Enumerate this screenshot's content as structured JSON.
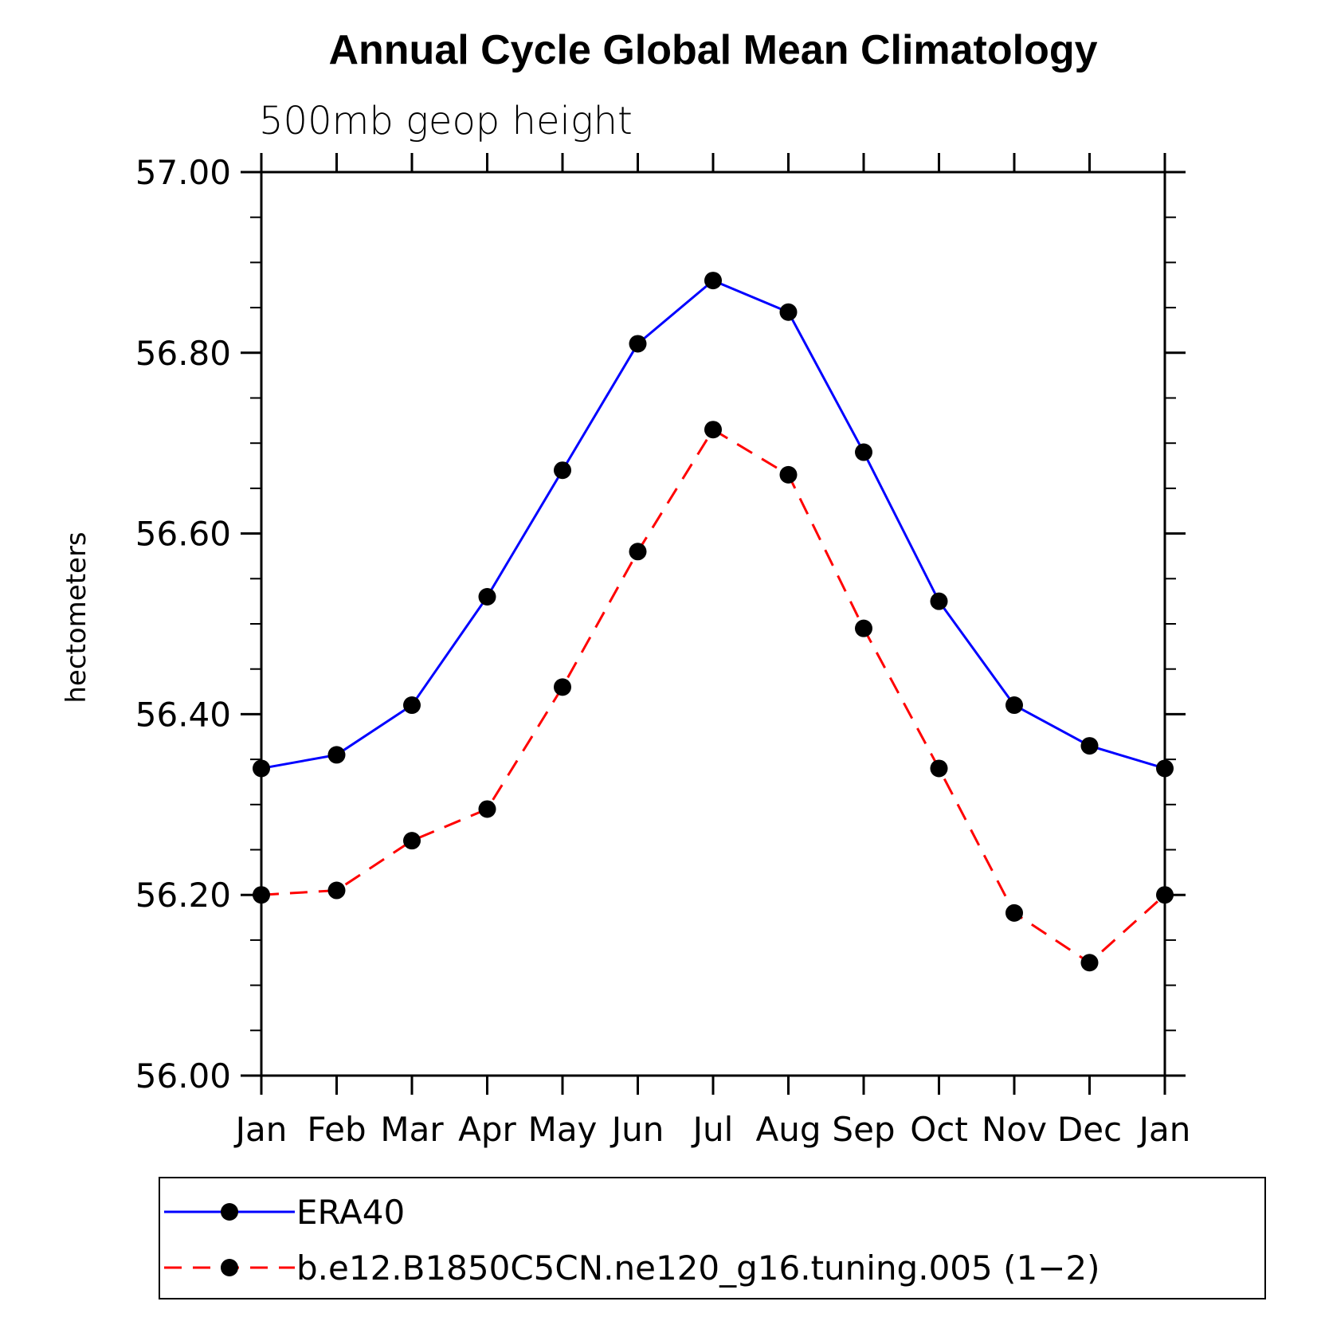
{
  "chart_data": {
    "type": "line",
    "title": "Annual Cycle Global Mean Climatology",
    "subtitle": "500mb geop height",
    "ylabel": "hectometers",
    "xlabel": "",
    "categories": [
      "Jan",
      "Feb",
      "Mar",
      "Apr",
      "May",
      "Jun",
      "Jul",
      "Aug",
      "Sep",
      "Oct",
      "Nov",
      "Dec",
      "Jan"
    ],
    "ylim": [
      56.0,
      57.0
    ],
    "yticks": [
      "56.00",
      "56.20",
      "56.40",
      "56.60",
      "56.80",
      "57.00"
    ],
    "grid": false,
    "legend_position": "bottom",
    "series": [
      {
        "name": "ERA40",
        "color": "#0000ff",
        "line_style": "solid",
        "marker": "filled-circle",
        "values": [
          56.34,
          56.355,
          56.41,
          56.53,
          56.67,
          56.81,
          56.88,
          56.845,
          56.69,
          56.525,
          56.41,
          56.365,
          56.34
        ]
      },
      {
        "name": "b.e12.B1850C5CN.ne120_g16.tuning.005 (1−2)",
        "color": "#ff0000",
        "line_style": "dashed",
        "marker": "filled-circle",
        "values": [
          56.2,
          56.205,
          56.26,
          56.295,
          56.43,
          56.58,
          56.715,
          56.665,
          56.495,
          56.34,
          56.18,
          56.125,
          56.2
        ]
      }
    ]
  }
}
